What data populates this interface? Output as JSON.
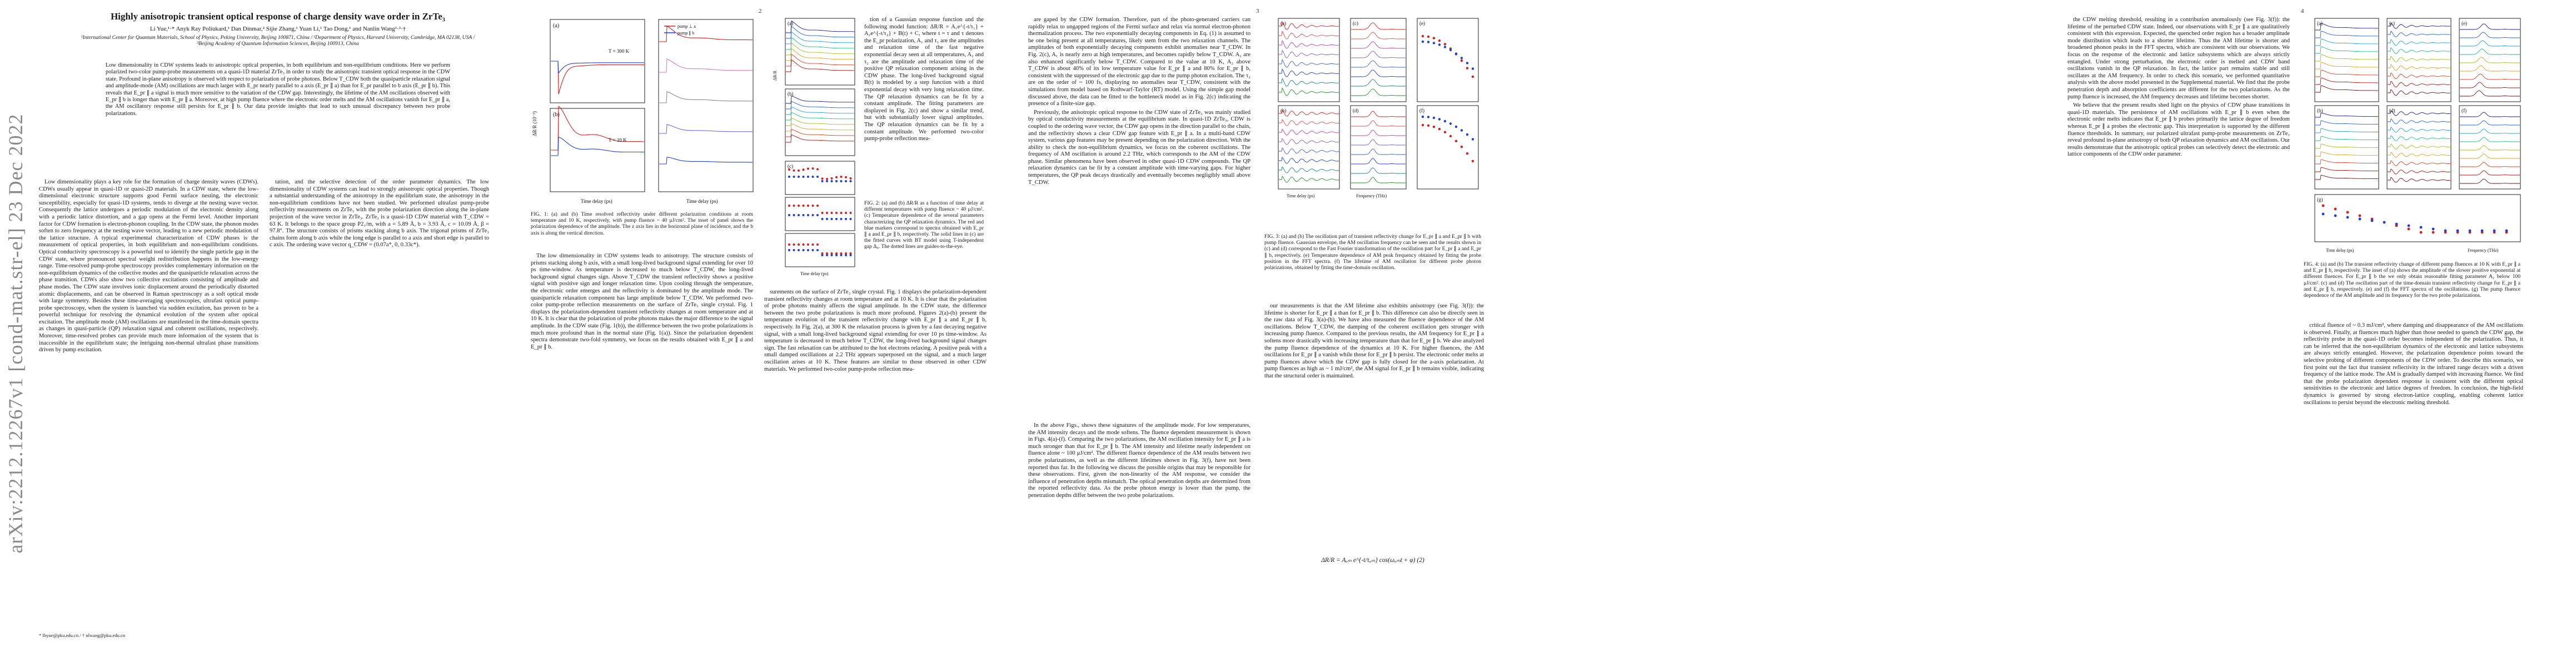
{
  "arxiv_stamp": "arXiv:2212.12267v1  [cond-mat.str-el]  23 Dec 2022",
  "page1": {
    "title": "Highly anisotropic transient optical response of charge density wave order in ZrTe₃",
    "authors": "Li Yue,¹·* Anyk Ray Poliukard,¹ Dan Dinmar,² Sijie Zhang,¹ Yuan Li,¹ Tao Dong,¹ and Nanlin Wang¹·³·†",
    "affiliations": "¹International Center for Quantum Materials, School of Physics, Peking University, Beijing 100871, China / ²Department of Physics, Harvard University, Cambridge, MA 02138, USA / ³Beijing Academy of Quantum Information Sciences, Beijing 100913, China",
    "abstract": "Low dimensionality in CDW systems leads to anisotropic optical properties, in both equilibrium and non-equilibrium conditions. Here we perform polarized two-color pump-probe measurements on a quasi-1D material ZrTe₃ in order to study the anisotropic transient optical response in the CDW state. Profound in-plane anisotropy is observed with respect to polarization of probe photons. Below T_CDW both the quasiparticle relaxation signal and amplitude-mode (AM) oscillations are much larger with E_pr nearly parallel to a axis (E_pr ∥ a) than for E_pr parallel to b axis (E_pr ∥ b). This reveals that E_pr ∥ a signal is much more sensitive to the variation of the CDW gap. Interestingly, the lifetime of the AM oscillations observed with E_pr ∥ b is longer than with E_pr ∥ a. Moreover, at high pump fluence where the electronic order melts and the AM oscillations vanish for E_pr ∥ a, the AM oscillatory response still persists for E_pr ∥ b. Our data provide insights that lead to such unusual discrepancy between two probe polarizations.",
    "col1_text": "Low dimensionality plays a key role for the formation of charge density waves (CDWs). CDWs usually appear in quasi-1D or quasi-2D materials. In a CDW state, where the low-dimensional electronic structure supports good Fermi surface nesting, the electronic susceptibility, especially for quasi-1D systems, tends to diverge at the nesting wave vector. Consequently the lattice undergoes a periodic modulation of the electronic density along with a periodic lattice distortion, and a gap opens at the Fermi level. Another important factor for CDW formation is electron-phonon coupling. In the CDW state, the phonon modes soften to zero frequency at the nesting wave vector, leading to a new periodic modulation of the lattice structure. A typical experimental characterization of CDW phases is the measurement of optical properties, in both equilibrium and non-equilibrium conditions. Optical conductivity spectroscopy is a powerful tool to identify the single particle gap in the CDW state, where pronounced spectral weight redistribution happens in the low-energy range. Time-resolved pump-probe spectroscopy provides complementary information on the non-equilibrium dynamics of the collective modes and the quasiparticle relaxation across the phase transition. CDWs also show two collective excitations consisting of amplitude and phase modes. The CDW state involves ionic displacement around the periodically distorted atomic displacements, and can be observed in Raman spectroscopy as a soft optical mode with large symmetry. Besides these time-averaging spectroscopies, ultrafast optical pump-probe spectroscopy, when the system is launched via sudden excitation, has proven to be a powerful technique for resolving the dynamical evolution of the system after optical excitation. The amplitude mode (AM) oscillations are manifested in the time-domain spectra as changes in quasi-particle (QP) relaxation signal and coherent oscillations, respectively. Moreover, time-resolved probes can provide much more information of the system that is inaccessible in the equilibrium state; the intriguing non-thermal ultrafast phase transitions driven by pump excitation.",
    "footnotes": "* lhyue@pku.edu.cn / † nlwang@pku.edu.cn"
  },
  "page2": {
    "number": "2",
    "fig1_caption": "FIG. 1: (a) and (b) Time resolved reflectivity under different polarization conditions at room temperature and 10 K, respectively, with pump fluence ~ 40 μJ/cm². The inset of panel shows the polarization dependence of the amplitude. The z axis lies in the horizontal plane of incidence, and the b axis is along the vertical direction.",
    "fig2_caption": "FIG. 2: (a) and (b) ΔR/R as a function of time delay at different temperatures with pump fluence ~ 40 μJ/cm². (c) Temperature dependence of the several parameters characterizing the QP relaxation dynamics. The red and blue markers correspond to spectra obtained with E_pr ∥ a and E_pr ∥ b, respectively. The solid lines in (c) are the fitted curves with BT model using T-independent gap Δ₀. The dotted lines are guides-to-the-eye.",
    "col1_text": "tation, and the selective detection of the order parameter dynamics. The low dimensionality of CDW systems can lead to strongly anisotropic optical properties. Though a substantial understanding of the anisotropy in the equilibrium state, the anisotropy in the non-equilibrium conditions have not been studied. We performed ultrafast pump-probe reflectivity measurements on ZrTe₃ with the probe polarization direction along the in-plane projection of the wave vector in ZrTe₃. ZrTe₃ is a quasi-1D CDW material with T_CDW = 63 K. It belongs to the space group P2₁/m, with a = 5.89 Å, b = 3.93 Å, c = 10.09 Å, β = 97.8°. The structure consists of prisms stacking along b axis. The trigonal prisms of ZrTe₃ chains form along b axis while the long edge is parallel to a axis and short edge is parallel to c axis. The ordering wave vector q_CDW = (0.07a*, 0, 0.33c*).",
    "col2_text": "The low dimensionality in CDW systems leads to anisotropy. The structure consists of prisms stacking along b axis, with a small long-lived background signal extending for over 10 ps time-window. As temperature is decreased to much below T_CDW, the long-lived background signal changes sign. Above T_CDW the transient reflectivity shows a positive signal with positive sign and longer relaxation time. Upon cooling through the temperature, the electronic order emerges and the reflectivity is dominated by the amplitude mode. The quasiparticle relaxation component has large amplitude below T_CDW. We performed two-color pump-probe reflection measurements on the surface of ZrTe₃ single crystal. Fig. 1 displays the polarization-dependent transient reflectivity changes at room temperature and at 10 K. It is clear that the polarization of probe photons makes the major difference to the signal amplitude. In the CDW state (Fig. 1(b)), the difference between the two probe polarizations is much more profound than in the normal state (Fig. 1(a)). Since the polarization dependent spectra demonstrate two-fold symmetry, we focus on the results obtained with E_pr ∥ a and E_pr ∥ b.",
    "col3_text": "surements on the surface of ZrTe₃ single crystal. Fig. 1 displays the polarization-dependent transient reflectivity changes at room temperature and at 10 K. It is clear that the polarization of probe photons mainly affects the signal amplitude. In the CDW state, the difference between the two probe polarizations is much more profound. Figures 2(a)-(b) present the temperature evolution of the transient reflectivity change with E_pr ∥ a and E_pr ∥ b, respectively. In Fig. 2(a), at 300 K the relaxation process is given by a fast decaying negative signal, with a small long-lived background signal extending for over 10 ps time-window. As temperature is decreased to much below T_CDW, the long-lived background signal changes sign. The fast relaxation can be attributed to the hot electrons relaxing. A positive peak with a small damped oscillations at 2.2 THz appears superposed on the signal, and a much larger oscillation arises at 10 K. These features are similar to those observed in other CDW materials. We performed two-color pump-probe reflection mea-",
    "col4_text": "tion of a Gaussian response function and the following model function: ΔR/R = A₁e^{-t/τ₁} + A₂e^{-t/τ₂} + B(t) + C, where t = τ and τ denotes the E_pr polarization, A₁ and τ₁ are the amplitudes and relaxation time of the fast negative exponential decay seen at all temperatures, A₂ and τ₂ are the amplitude and relaxation time of the positive QP relaxation component arising in the CDW phase. The long-lived background signal B(t) is modeled by a step function with a third exponential decay with very long relaxation time. The QP relaxation dynamics can be fit by a constant amplitude. The fitting parameters are displayed in Fig. 2(c) and show a similar trend, but with substantially lower signal amplitudes. The QP relaxation dynamics can be fit by a constant amplitude. We performed two-color pump-probe reflection mea-"
  },
  "page3": {
    "number": "3",
    "fig3_caption": "FIG. 3: (a) and (b) The oscillation part of transient reflectivity change for E_pr ∥ a and E_pr ∥ b with pump fluence. Gaussian envelope, the AM oscillation frequency can be seen and the results shown in (c) and (d) correspond to the Fast Fourier transformation of the oscillation part for E_pr ∥ a and E_pr ∥ b, respectively. (e) Temperature dependence of AM peak frequency obtained by fitting the probe position in the FFT spectra. (f) The lifetime of AM oscillation for different probe photon polarizations, obtained by fitting the time-domain oscillation.",
    "col1_text": "are gaped by the CDW formation. Therefore, part of the photo-generated carriers can rapidly relax to ungapped regions of the Fermi surface and relax via normal electron-phonon thermalization process. The two exponentially decaying components in Eq. (1) is assumed to be one being present at all temperatures, likely stem from the two relaxation channels. The amplitudes of both exponentially decaying components exhibit anomalies near T_CDW. In Fig. 2(c), A₁ is nearly zero at high temperatures, and becomes rapidly below T_CDW. A₂ are also enhanced significantly below T_CDW. Compared to the value at 10 K, A₂ above T_CDW is about 40% of its low temperature value for E_pr ∥ a and 80% for E_pr ∥ b, consistent with the suppressed of the electronic gap due to the pump photon excitation. The τ₂ are on the order of ~ 100 fs, displaying no anomalies near T_CDW, consistent with the simulations from model based on Rothwarf-Taylor (RT) model. Using the simple gap model discussed above, the data can be fitted to the bottleneck model as in Fig. 2(c) indicating the presence of a finite-size gap.",
    "col2_text": "Previously, the anisotropic optical response to the CDW state of ZrTe₃ was mainly studied by optical conductivity measurements at the equilibrium state. In quasi-1D ZrTe₃, CDW is coupled to the ordering wave vector, the CDW gap opens in the direction parallel to the chain, and the reflectivity shows a clear CDW gap feature with E_pr ∥ a. In a multi-band CDW system, various gap features may be present depending on the polarization direction. With the ability to check the non-equilibrium dynamics, we focus on the coherent oscillations. The frequency of AM oscillation is around 2.2 THz, which corresponds to the AM of the CDW phase. Similar phenomena have been observed in other quasi-1D CDW compounds. The QP relaxation dynamics can be fit by a constant amplitude with time-varying gaps. For higher temperatures, the QP peak decays drastically and eventually becomes negligibly small above T_CDW.",
    "col3_text": "our measurements is that the AM lifetime also exhibits anisotropy (see Fig. 3(f)): the lifetime is shorter for E_pr ∥ a than for E_pr ∥ b. This difference can also be directly seen in the raw data of Fig. 3(a)-(b). We have also measured the fluence dependence of the AM oscillations. Below T_CDW, the damping of the coherent oscillation gets stronger with increasing pump fluence. Compared to the previous results, the AM frequency for E_pr ∥ a softens more drastically with increasing temperature than that for E_pr ∥ b. We also analyzed the pump fluence dependence of the dynamics at 10 K. For higher fluences, the AM oscillations for E_pr ∥ a vanish while those for E_pr ∥ b persist. The electronic order melts at pump fluences above which the CDW gap is fully closed for the a-axis polarization. At pump fluences as high as ~ 1 mJ/cm², the AM signal for E_pr ∥ b remains visible, indicating that the structural order is maintained.",
    "col4_text": "In the above Figs., shows these signatures of the amplitude mode. For low temperatures, the AM intensity decays and the mode softens. The fluence dependent measurement is shown in Figs. 4(a)-(f). Comparing the two polarizations, the AM oscillation intensity for E_pr ∥ a is much stronger than that for E_pr ∥ b. The AM intensity and lifetime nearly independent on fluence alone ~ 100 μJ/cm². The different fluence dependence of the AM results between two probe polarizations, as well as the different lifetimes shown in Fig. 3(f), have not been reported thus far. In the following we discuss the possible origins that may be responsible for these observations. First, given the non-linearity of the AM response, we consider the influence of penetration depths mismatch. The optical penetration depths are determined from the reported reflectivity data. As the probe photon energy is lower than the pump, the penetration depths differ between the two probe polarizations.",
    "eq2": "ΔR/R = Aₐₘ e^{-t/τₐₘ} cos(ωₐₘt + φ)     (2)"
  },
  "page4": {
    "number": "4",
    "fig4_caption": "FIG. 4: (a) and (b) The transient reflectivity change of different pump fluences at 10 K with E_pr ∥ a and E_pr ∥ b, respectively. The inset of (a) shows the amplitude of the slower positive exponential at different fluences. For E_pr ∥ b the we only obtain reasonable fitting parameter A₂ below 100 μJ/cm². (c) and (d) The oscillation part of the time-domain transient reflectivity change for E_pr ∥ a and E_pr ∥ b, respectively. (e) and (f) the FFT spectra of the oscillations. (g) The pump fluence dependence of the AM amplitude and its frequency for the two probe polarizations.",
    "col1_text": "the CDW melting threshold, resulting in a contribution anomalously (see Fig. 3(f)): the lifetime of the perturbed CDW state. Indeed, our observations with E_pr ∥ a are qualitatively consistent with this expression. Expected, the quenched order region has a broader amplitude mode distribution which leads to a shorter lifetime. Thus the AM lifetime is shorter and broadened phonon peaks in the FFT spectra, which are consistent with our observations. We focus on the response of the electronic and lattice subsystems which are always strictly entangled. Under strong perturbation, the electronic order is melted and CDW band oscillations vanish in the QP relaxation. In fact, the lattice part remains stable and still oscillates at the AM frequency. In order to check this scenario, we performed quantitative analysis with the above model presented in the Supplemental material. We find that the probe penetration depth and absorption coefficients are different for the two polarizations. As the pump fluence is increased, the AM frequency decreases and lifetime becomes shorter.",
    "col2_text": "We believe that the present results shed light on the physics of CDW phase transitions in quasi-1D materials. The persistence of AM oscillations with E_pr ∥ b even when the electronic order melts indicates that E_pr ∥ b probes primarily the lattice degree of freedom whereas E_pr ∥ a probes the electronic gap. This interpretation is supported by the different fluence thresholds. In summary, our polarized ultrafast pump-probe measurements on ZrTe₃ reveal profound in-plane anisotropy of both QP relaxation dynamics and AM oscillations. Our results demonstrate that the anisotropic optical probes can selectively detect the electronic and lattice components of the CDW order parameter.",
    "col3_text": "critical fluence of ~ 0.3 mJ/cm², where damping and disappearance of the AM oscillations is observed. Finally, at fluences much higher than those needed to quench the CDW gap, the reflectivity probe in the quasi-1D order becomes independent of the polarization. Thus, it can be inferred that the non-equilibrium dynamics of the electronic and lattice subsystems are always strictly entangled. However, the polarization dependence points toward the selective probing of different components of the CDW order. To describe this scenario, we first point out the fact that transient reflectivity in the infrared range decays with a driven frequency of the lattice mode. The AM is gradually damped with increasing fluence. We find that the probe polarization dependent response is consistent with the different optical sensitivities to the electronic and lattice degrees of freedom. In conclusion, the high-field dynamics is governed by strong electron-lattice coupling, enabling coherent lattice oscillations to persist beyond the electronic melting threshold."
  },
  "fig1_axes": {
    "ylabel": "ΔR/R (10⁻³)",
    "xlabel": "Time delay (ps)",
    "legend_a": "pump ⊥ a",
    "legend_b": "pump ∥ b",
    "label_a": "T = 300 K",
    "label_b": "T = 10 K",
    "panel_a": "(a)",
    "panel_b": "(b)"
  },
  "fig2_axes": {
    "xlabel": "Time delay (ps)",
    "ylabel": "ΔR/R",
    "panels": [
      "(a)",
      "(b)",
      "(c)"
    ]
  },
  "fig3_axes": {
    "xlabel_time": "Time delay (ps)",
    "xlabel_freq": "Frequency (THz)",
    "panels": [
      "(a)",
      "(b)",
      "(c)",
      "(d)",
      "(e)",
      "(f)"
    ]
  },
  "fig4_axes": {
    "xlabel_time": "Time delay (ps)",
    "xlabel_freq": "Frequency (THz)",
    "panels": [
      "(a)",
      "(b)",
      "(c)",
      "(d)",
      "(e)",
      "(f)",
      "(g)"
    ]
  },
  "colors": {
    "red": "#d62020",
    "blue": "#1f3fd6",
    "green": "#2a8a2a",
    "pink": "#e07ab0",
    "gray": "#888888"
  }
}
